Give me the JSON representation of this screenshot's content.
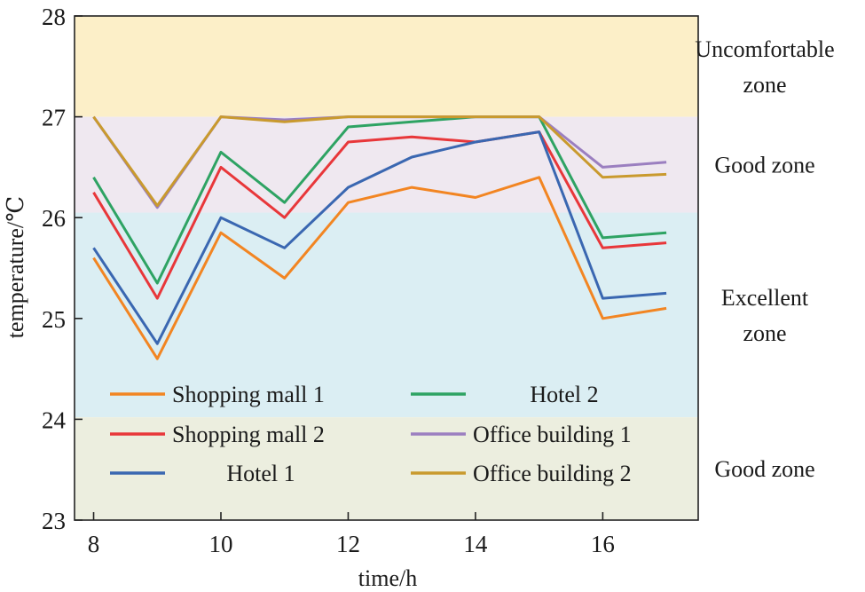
{
  "chart_data": {
    "type": "line",
    "title": "",
    "xlabel": "time/h",
    "ylabel": "temperature/℃",
    "xlim": [
      7.7,
      17.5
    ],
    "ylim": [
      23,
      28
    ],
    "x_ticks": [
      8,
      10,
      12,
      14,
      16
    ],
    "x_tick_labels": [
      "8",
      "10",
      "12",
      "14",
      "16"
    ],
    "y_ticks": [
      23,
      24,
      25,
      26,
      27,
      28
    ],
    "y_tick_labels": [
      "23",
      "24",
      "25",
      "26",
      "27",
      "28"
    ],
    "x": [
      8,
      9,
      10,
      11,
      12,
      13,
      14,
      15,
      16,
      17
    ],
    "zones": [
      {
        "from": 27,
        "to": 28,
        "color": "#fcefc8",
        "label_lines": [
          "Uncomfortable",
          "zone"
        ]
      },
      {
        "from": 26.05,
        "to": 27,
        "color": "#efe8f0",
        "label_lines": [
          "Good zone"
        ]
      },
      {
        "from": 24.02,
        "to": 26.05,
        "color": "#dbeef3",
        "label_lines": [
          "Excellent",
          "zone"
        ]
      },
      {
        "from": 23,
        "to": 24.02,
        "color": "#eceedf",
        "label_lines": [
          "Good zone"
        ]
      }
    ],
    "series": [
      {
        "name": "Shopping mall 1",
        "color": "#f28522",
        "values": [
          25.6,
          24.6,
          25.85,
          25.4,
          26.15,
          26.3,
          26.2,
          26.4,
          25.0,
          25.1
        ]
      },
      {
        "name": "Shopping mall 2",
        "color": "#e8373a",
        "values": [
          26.25,
          25.2,
          26.5,
          26.0,
          26.75,
          26.8,
          26.75,
          26.85,
          25.7,
          25.75
        ]
      },
      {
        "name": "Hotel 1",
        "color": "#3a67b1",
        "values": [
          25.7,
          24.75,
          26.0,
          25.7,
          26.3,
          26.6,
          26.75,
          26.85,
          25.2,
          25.25
        ]
      },
      {
        "name": "Hotel 2",
        "color": "#2ea363",
        "values": [
          26.4,
          25.35,
          26.65,
          26.15,
          26.9,
          26.95,
          27.0,
          27.0,
          25.8,
          25.85
        ]
      },
      {
        "name": "Office building 1",
        "color": "#9b7fc0",
        "values": [
          27.0,
          26.1,
          27.0,
          26.97,
          27.0,
          27.0,
          27.0,
          27.0,
          26.5,
          26.55
        ]
      },
      {
        "name": "Office building 2",
        "color": "#c99a2e",
        "values": [
          27.0,
          26.12,
          27.0,
          26.95,
          27.0,
          27.0,
          27.0,
          27.0,
          26.4,
          26.43
        ]
      }
    ],
    "legend": {
      "position": "bottom-left inside",
      "columns": 2
    }
  }
}
